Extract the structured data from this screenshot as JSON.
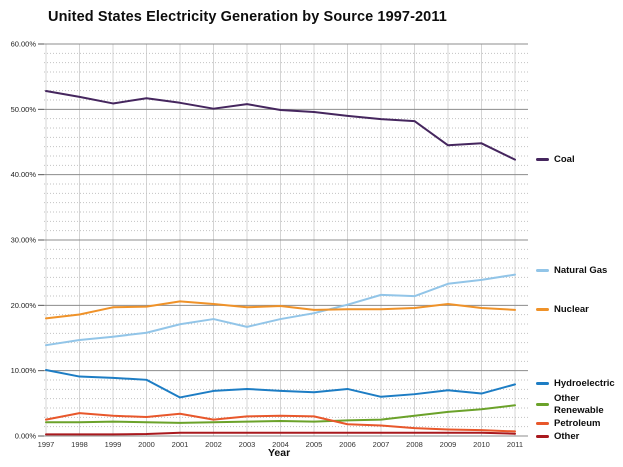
{
  "title": "United States Electricity Generation by Source 1997-2011",
  "chart_data": {
    "type": "line",
    "title": "United States Electricity Generation by Source 1997-2011",
    "xlabel": "Year",
    "ylabel": "",
    "x": [
      1997,
      1998,
      1999,
      2000,
      2001,
      2002,
      2003,
      2004,
      2005,
      2006,
      2007,
      2008,
      2009,
      2010,
      2011
    ],
    "ylim": [
      0,
      60
    ],
    "y_ticks": [
      "60.00%",
      "50.00%",
      "40.00%",
      "30.00%",
      "20.00%",
      "10.00%",
      "0.00%"
    ],
    "grid": {
      "major_horizontal": true,
      "minor_horizontal": "dotted",
      "vertical_per_year": true
    },
    "legend_position": "right",
    "series": [
      {
        "name": "Coal",
        "color": "#45265e",
        "values": [
          52.8,
          51.9,
          50.9,
          51.7,
          51.0,
          50.1,
          50.8,
          49.9,
          49.6,
          49.0,
          48.5,
          48.2,
          44.5,
          44.8,
          42.3
        ]
      },
      {
        "name": "Natural Gas",
        "color": "#92c5e8",
        "values": [
          13.9,
          14.7,
          15.2,
          15.8,
          17.1,
          17.9,
          16.7,
          17.9,
          18.8,
          20.1,
          21.6,
          21.4,
          23.3,
          23.9,
          24.7
        ]
      },
      {
        "name": "Nuclear",
        "color": "#ef9229",
        "values": [
          18.0,
          18.6,
          19.7,
          19.8,
          20.6,
          20.2,
          19.7,
          19.9,
          19.3,
          19.4,
          19.4,
          19.6,
          20.2,
          19.6,
          19.3
        ]
      },
      {
        "name": "Hydroelectric",
        "color": "#1d7dc4",
        "values": [
          10.1,
          9.1,
          8.9,
          8.6,
          5.9,
          6.9,
          7.2,
          6.9,
          6.7,
          7.2,
          6.0,
          6.4,
          7.0,
          6.5,
          7.9
        ]
      },
      {
        "name": "Other Renewable",
        "color": "#6ba22a",
        "two_line": true,
        "values": [
          2.1,
          2.1,
          2.2,
          2.1,
          2.0,
          2.1,
          2.2,
          2.3,
          2.2,
          2.4,
          2.5,
          3.1,
          3.7,
          4.1,
          4.7
        ]
      },
      {
        "name": "Petroleum",
        "color": "#e8572b",
        "values": [
          2.5,
          3.5,
          3.1,
          2.9,
          3.4,
          2.5,
          3.0,
          3.1,
          3.0,
          1.8,
          1.6,
          1.2,
          1.0,
          0.9,
          0.7
        ]
      },
      {
        "name": "Other",
        "color": "#a9191e",
        "values": [
          0.25,
          0.25,
          0.25,
          0.3,
          0.5,
          0.5,
          0.5,
          0.5,
          0.5,
          0.5,
          0.5,
          0.5,
          0.5,
          0.5,
          0.35
        ]
      }
    ]
  }
}
